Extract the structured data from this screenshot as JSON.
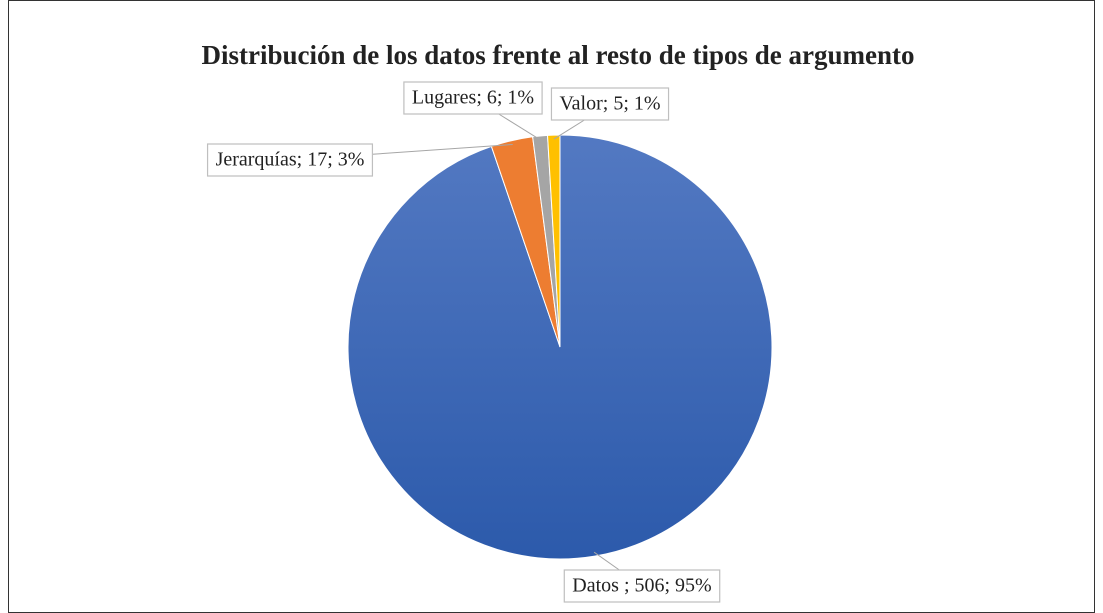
{
  "chart_data": {
    "type": "pie",
    "title": "Distribución de los datos frente al resto de tipos de argumento",
    "values": [
      506,
      17,
      6,
      5
    ],
    "value_labels": [
      "Datos ; 506; 95%",
      "Jerarquías; 17; 3%",
      "Lugares; 6; 1%",
      "Valor; 5; 1%"
    ],
    "colors": [
      "#3d67b7",
      "#ed7d31",
      "#a5a5a5",
      "#ffc000"
    ]
  }
}
